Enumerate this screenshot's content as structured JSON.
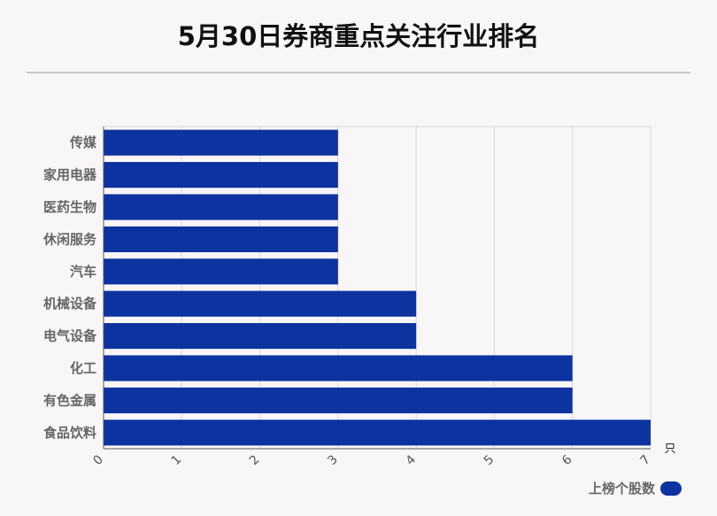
{
  "page": {
    "title": "5月30日券商重点关注行业排名"
  },
  "chart_data": {
    "type": "bar",
    "orientation": "horizontal",
    "title": "5月30日券商重点关注行业排名",
    "categories": [
      "传媒",
      "家用电器",
      "医药生物",
      "休闲服务",
      "汽车",
      "机械设备",
      "电气设备",
      "化工",
      "有色金属",
      "食品饮料"
    ],
    "series": [
      {
        "name": "上榜个股数",
        "values": [
          3,
          3,
          3,
          3,
          3,
          4,
          4,
          6,
          6,
          7
        ],
        "color": "#0d33a0"
      }
    ],
    "xlim": [
      0,
      7
    ],
    "xticks": [
      "0",
      "1",
      "2",
      "3",
      "4",
      "5",
      "6",
      "7"
    ],
    "x_unit": "只",
    "grid": true,
    "legend_position": "bottom-right"
  }
}
